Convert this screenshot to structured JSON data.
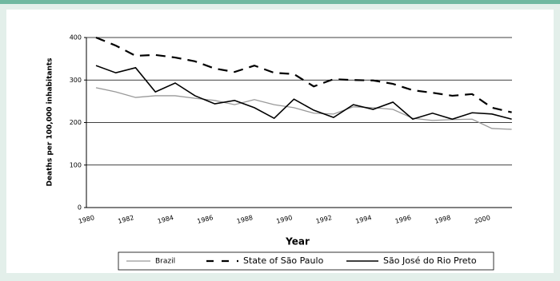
{
  "chart_data": {
    "type": "line",
    "xlabel": "Year",
    "ylabel": "Deaths per 100,000 inhabitants",
    "categories": [
      "1980",
      null,
      "1982",
      null,
      "1984",
      null,
      "1986",
      null,
      "1988",
      null,
      "1990",
      null,
      "1992",
      null,
      "1994",
      null,
      "1996",
      null,
      "1998",
      null,
      "2000",
      null
    ],
    "series": [
      {
        "name": "Brazil",
        "color": "#999999",
        "line_style": "solid",
        "values": [
          282,
          272,
          259,
          263,
          263,
          257,
          252,
          242,
          254,
          242,
          235,
          222,
          220,
          237,
          235,
          231,
          210,
          205,
          207,
          208,
          186,
          184
        ]
      },
      {
        "name": "State of São Paulo",
        "color": "#000000",
        "line_style": "dashed",
        "values": [
          400,
          381,
          357,
          359,
          353,
          344,
          327,
          319,
          334,
          317,
          314,
          285,
          302,
          300,
          299,
          291,
          276,
          270,
          263,
          267,
          235,
          224
        ]
      },
      {
        "name": "São José do Rio Preto",
        "color": "#000000",
        "line_style": "solid",
        "values": [
          334,
          317,
          329,
          272,
          293,
          263,
          244,
          252,
          235,
          210,
          255,
          229,
          212,
          242,
          231,
          248,
          208,
          222,
          208,
          223,
          220,
          208
        ]
      }
    ],
    "ylim": [
      0,
      400
    ],
    "yticks": [
      0,
      100,
      200,
      300,
      400
    ],
    "grid": true,
    "legend": "bottom"
  }
}
